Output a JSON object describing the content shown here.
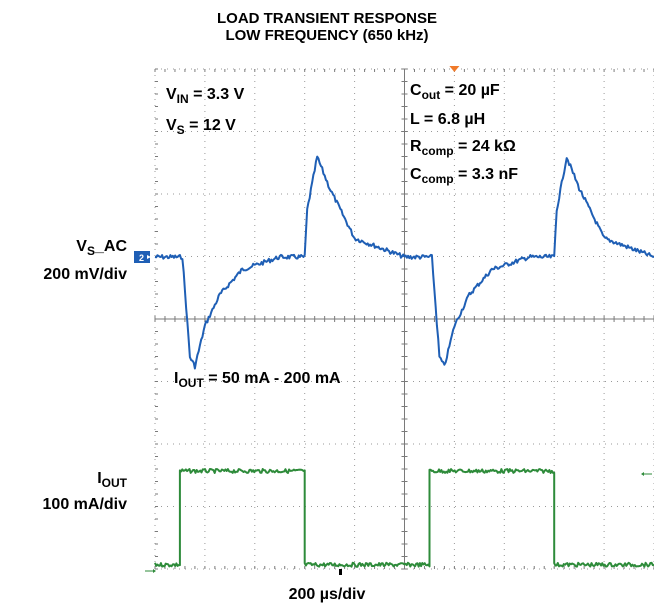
{
  "title_line1": "LOAD TRANSIENT RESPONSE",
  "title_line2": "LOW FREQUENCY (650 kHz)",
  "params": {
    "vin": {
      "sym": "V",
      "sub": "IN",
      "val": " = 3.3 V"
    },
    "vs": {
      "sym": "V",
      "sub": "S",
      "val": " = 12 V"
    },
    "cout": {
      "sym": "C",
      "sub": "out",
      "val": " = 20 µF"
    },
    "l": {
      "text": "L = 6.8 µH"
    },
    "rcomp": {
      "sym": "R",
      "sub": "comp",
      "val": " = 24 kΩ"
    },
    "ccomp": {
      "sym": "C",
      "sub": "comp",
      "val": " = 3.3 nF"
    },
    "iout_range": {
      "sym": "I",
      "sub": "OUT",
      "val": "  = 50 mA - 200 mA"
    }
  },
  "ch2": {
    "name_sym": "V",
    "name_sub": "S",
    "name_suffix": "_AC",
    "scale": "200 mV/div",
    "marker": "2",
    "color": "#1f5fb5"
  },
  "ch1": {
    "name_sym": "I",
    "name_sub": "OUT",
    "scale": "100 mA/div",
    "color": "#2e8b3a"
  },
  "timebase": "200 µs/div",
  "trigger_color": "#f07a2a",
  "chart_data": {
    "type": "line",
    "x_unit": "µs",
    "xlim": [
      0,
      2000
    ],
    "grid": true,
    "divisions_x": 10,
    "divisions_y": 8,
    "series": [
      {
        "name": "V_S_AC",
        "color": "#1f5fb5",
        "scale_per_div": "200 mV/div",
        "x": [
          0,
          100,
          110,
          140,
          160,
          200,
          260,
          350,
          500,
          600,
          610,
          650,
          700,
          800,
          1000,
          1110,
          1140,
          1160,
          1200,
          1260,
          1350,
          1500,
          1600,
          1610,
          1650,
          1700,
          1800,
          2000
        ],
        "y": [
          0,
          0,
          0,
          -320,
          -350,
          -220,
          -120,
          -40,
          0,
          0,
          150,
          320,
          220,
          60,
          0,
          0,
          -320,
          -350,
          -220,
          -120,
          -40,
          0,
          0,
          150,
          320,
          220,
          60,
          0
        ]
      },
      {
        "name": "I_OUT",
        "color": "#2e8b3a",
        "scale_per_div": "100 mA/div",
        "x": [
          0,
          100,
          100,
          600,
          600,
          1100,
          1100,
          1600,
          1600,
          2000
        ],
        "y": [
          50,
          50,
          200,
          200,
          50,
          50,
          200,
          200,
          50,
          50
        ]
      }
    ]
  }
}
